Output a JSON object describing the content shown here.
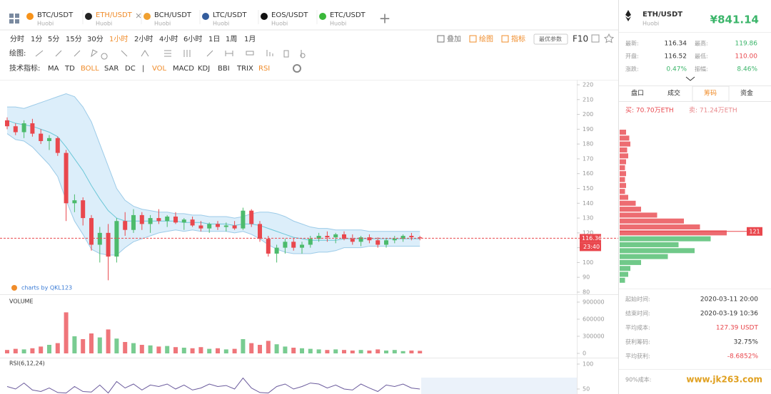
{
  "tabs": [
    {
      "symbol": "BTC/USDT",
      "exchange": "Huobi",
      "color": "#f7931a"
    },
    {
      "symbol": "ETH/USDT",
      "exchange": "Huobi",
      "color": "#222"
    },
    {
      "symbol": "BCH/USDT",
      "exchange": "Huobi",
      "color": "#f0a030"
    },
    {
      "symbol": "LTC/USDT",
      "exchange": "Huobi",
      "color": "#345d9d"
    },
    {
      "symbol": "EOS/USDT",
      "exchange": "Huobi",
      "color": "#111"
    },
    {
      "symbol": "ETC/USDT",
      "exchange": "Huobi",
      "color": "#3ab83a"
    }
  ],
  "active_tab": 1,
  "timeframes": [
    "分时",
    "1分",
    "5分",
    "15分",
    "30分",
    "1小时",
    "2小时",
    "4小时",
    "6小时",
    "1日",
    "1周",
    "1月"
  ],
  "active_timeframe": 5,
  "toolbar_actions": [
    "叠加",
    "绘图",
    "指标"
  ],
  "optimal_button": "最优参数",
  "f10": "F10",
  "drawing_label": "绘图:",
  "indicator_label": "技术指标:",
  "indicators": [
    "MA",
    "TD",
    "BOLL",
    "SAR",
    "DC",
    "|",
    "VOL",
    "MACD",
    "KDJ",
    "BBI",
    "TRIX",
    "RSI"
  ],
  "active_indicators": [
    2,
    6,
    11
  ],
  "chart_data": {
    "type": "candlestick",
    "candles": [
      [
        196,
        198,
        190,
        192
      ],
      [
        192,
        194,
        186,
        188
      ],
      [
        188,
        196,
        184,
        194
      ],
      [
        194,
        197,
        185,
        187
      ],
      [
        187,
        190,
        180,
        182
      ],
      [
        182,
        186,
        176,
        184
      ],
      [
        184,
        185,
        172,
        174
      ],
      [
        174,
        176,
        128,
        140
      ],
      [
        140,
        146,
        134,
        142
      ],
      [
        142,
        144,
        125,
        130
      ],
      [
        130,
        132,
        108,
        112
      ],
      [
        112,
        124,
        100,
        120
      ],
      [
        120,
        126,
        88,
        104
      ],
      [
        104,
        130,
        100,
        128
      ],
      [
        128,
        134,
        118,
        122
      ],
      [
        122,
        136,
        120,
        132
      ],
      [
        132,
        134,
        122,
        126
      ],
      [
        126,
        132,
        120,
        130
      ],
      [
        130,
        136,
        126,
        128
      ],
      [
        128,
        132,
        124,
        131
      ],
      [
        131,
        134,
        126,
        127
      ],
      [
        127,
        130,
        122,
        129
      ],
      [
        129,
        131,
        124,
        125
      ],
      [
        125,
        128,
        121,
        123
      ],
      [
        123,
        127,
        120,
        126
      ],
      [
        126,
        128,
        122,
        124
      ],
      [
        124,
        127,
        121,
        125
      ],
      [
        125,
        128,
        122,
        123
      ],
      [
        123,
        137,
        122,
        135
      ],
      [
        135,
        136,
        124,
        126
      ],
      [
        126,
        128,
        114,
        116
      ],
      [
        116,
        118,
        104,
        106
      ],
      [
        106,
        112,
        100,
        110
      ],
      [
        110,
        116,
        106,
        114
      ],
      [
        114,
        116,
        108,
        110
      ],
      [
        110,
        114,
        106,
        112
      ],
      [
        112,
        118,
        110,
        116
      ],
      [
        116,
        120,
        114,
        118
      ],
      [
        118,
        121,
        114,
        117
      ],
      [
        117,
        120,
        113,
        119
      ],
      [
        119,
        121,
        115,
        116
      ],
      [
        116,
        119,
        112,
        114
      ],
      [
        114,
        118,
        111,
        117
      ],
      [
        117,
        119,
        113,
        115
      ],
      [
        115,
        117,
        110,
        112
      ],
      [
        112,
        116,
        110,
        115
      ],
      [
        115,
        118,
        113,
        116
      ],
      [
        116,
        119,
        114,
        118
      ],
      [
        118,
        120,
        115,
        117
      ],
      [
        117,
        118,
        115,
        116.36
      ]
    ],
    "boll_upper": [
      205,
      205,
      204,
      206,
      208,
      210,
      212,
      214,
      212,
      205,
      195,
      180,
      165,
      150,
      142,
      138,
      136,
      135,
      134,
      134,
      133,
      133,
      132,
      132,
      131,
      131,
      131,
      130,
      131,
      133,
      134,
      134,
      133,
      131,
      128,
      126,
      124,
      123,
      123,
      122,
      122,
      122,
      122,
      121,
      121,
      121,
      121,
      121,
      121,
      121
    ],
    "boll_mid": [
      196,
      194,
      193,
      192,
      190,
      188,
      185,
      178,
      170,
      162,
      152,
      143,
      135,
      130,
      128,
      128,
      128,
      128,
      128,
      128,
      128,
      127,
      127,
      127,
      126,
      126,
      126,
      125,
      126,
      126,
      125,
      123,
      121,
      119,
      117,
      116,
      115,
      115,
      115,
      115,
      116,
      116,
      116,
      116,
      116,
      116,
      116,
      116,
      116,
      116
    ],
    "boll_lower": [
      187,
      183,
      182,
      178,
      172,
      166,
      158,
      142,
      128,
      119,
      109,
      106,
      105,
      105,
      110,
      114,
      116,
      118,
      120,
      121,
      122,
      121,
      122,
      121,
      121,
      121,
      121,
      120,
      121,
      119,
      116,
      112,
      109,
      107,
      106,
      106,
      106,
      107,
      107,
      108,
      110,
      110,
      110,
      111,
      111,
      111,
      111,
      111,
      111,
      111
    ],
    "up_color": "#4cbb6c",
    "down_color": "#e9474d",
    "band_color": "#bfe0f6",
    "mid_color": "#6cc7d8",
    "ylim": [
      80,
      220
    ],
    "yticks": [
      80,
      90,
      100,
      110,
      120,
      130,
      140,
      150,
      160,
      170,
      180,
      190,
      200,
      210,
      220
    ],
    "last_price": 116.36,
    "last_time": "23:40",
    "watermark": "charts by QKL123",
    "volume": {
      "label": "VOLUME",
      "values": [
        60000,
        80000,
        70000,
        90000,
        120000,
        150000,
        180000,
        720000,
        300000,
        250000,
        350000,
        280000,
        420000,
        260000,
        200000,
        180000,
        150000,
        140000,
        120000,
        130000,
        110000,
        100000,
        90000,
        110000,
        80000,
        90000,
        70000,
        80000,
        250000,
        180000,
        150000,
        220000,
        160000,
        120000,
        100000,
        90000,
        80000,
        70000,
        60000,
        70000,
        60000,
        50000,
        60000,
        50000,
        70000,
        50000,
        60000,
        40000,
        50000,
        45000
      ],
      "ylim": [
        0,
        900000
      ],
      "yticks": [
        0,
        300000,
        600000,
        900000
      ]
    },
    "rsi": {
      "label": "RSI(6,12,24)",
      "color": "#6a5a9c",
      "values": [
        55,
        50,
        62,
        48,
        45,
        52,
        43,
        42,
        55,
        45,
        44,
        58,
        42,
        65,
        52,
        60,
        48,
        58,
        55,
        60,
        50,
        58,
        48,
        52,
        60,
        55,
        57,
        50,
        72,
        52,
        43,
        42,
        55,
        60,
        50,
        55,
        62,
        60,
        52,
        58,
        50,
        48,
        60,
        52,
        45,
        58,
        55,
        60,
        52,
        50
      ],
      "ylim": [
        40,
        100
      ],
      "yticks": [
        50,
        100
      ]
    }
  },
  "side": {
    "symbol": "ETH/USDT",
    "exchange": "Huobi",
    "price": "¥841.14",
    "stats": [
      {
        "label": "最新:",
        "value": "116.34",
        "color": "#333"
      },
      {
        "label": "最高:",
        "value": "119.86",
        "color": "#3bb56a"
      },
      {
        "label": "开盘:",
        "value": "116.52",
        "color": "#333"
      },
      {
        "label": "最低:",
        "value": "110.00",
        "color": "#e9474d"
      },
      {
        "label": "涨跌:",
        "value": "0.47%",
        "color": "#3bb56a"
      },
      {
        "label": "振幅:",
        "value": "8.46%",
        "color": "#3bb56a"
      }
    ],
    "tabs": [
      "盘口",
      "成交",
      "筹码",
      "资金"
    ],
    "active_tab": 2,
    "buy": "买: 70.70万ETH",
    "sell": "卖: 71.24万ETH",
    "chip_prices": [
      88,
      92,
      96,
      100,
      104,
      108,
      112,
      116,
      120,
      124,
      128,
      132,
      136,
      140,
      144,
      148,
      152,
      156,
      160,
      164,
      168,
      172,
      176,
      180,
      184,
      188
    ],
    "chip_values": [
      5,
      8,
      10,
      20,
      45,
      70,
      55,
      85,
      100,
      75,
      60,
      35,
      20,
      15,
      8,
      5,
      6,
      5,
      6,
      5,
      6,
      8,
      7,
      10,
      9,
      6
    ],
    "chip_cursor": 121,
    "summary": [
      {
        "label": "起始时间:",
        "value": "2020-03-11 20:00",
        "color": "#333"
      },
      {
        "label": "结束时间:",
        "value": "2020-03-19 10:36",
        "color": "#333"
      },
      {
        "label": "平均成本:",
        "value": "127.39 USDT",
        "color": "#e9474d"
      },
      {
        "label": "获利筹码:",
        "value": "32.75%",
        "color": "#333"
      },
      {
        "label": "平均获利:",
        "value": "-8.6852%",
        "color": "#e9474d"
      }
    ],
    "cost_label": "90%成本:",
    "watermark": "www.jk263.com"
  }
}
